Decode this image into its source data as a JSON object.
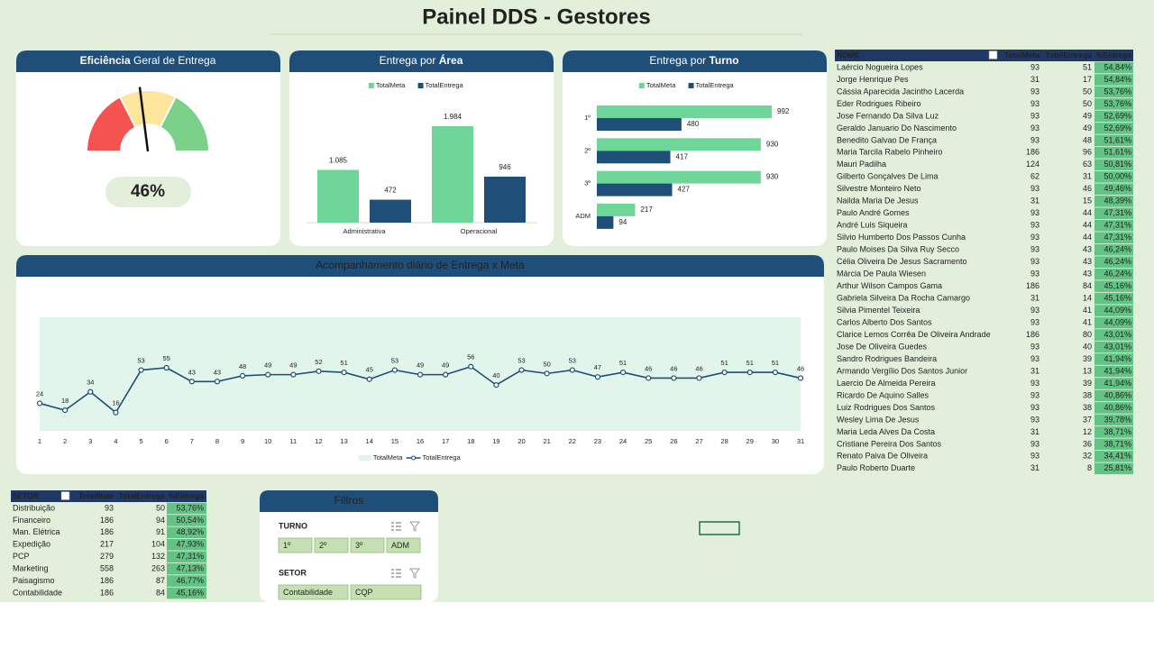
{
  "title": "Painel DDS - Gestores",
  "chart_data": [
    {
      "type": "gauge",
      "title_parts": [
        {
          "text": "Eficiência",
          "bold": true
        },
        {
          "text": "Geral de Entrega",
          "bold": false
        }
      ],
      "values": [
        46
      ],
      "value_labels": [
        "46%"
      ],
      "ylim": [
        0,
        100
      ],
      "bands": [
        {
          "from": 0,
          "to": 35,
          "color": "#f4534f"
        },
        {
          "from": 35,
          "to": 65,
          "color": "#fde59b"
        },
        {
          "from": 65,
          "to": 100,
          "color": "#7bd08a"
        }
      ]
    },
    {
      "type": "bar",
      "title_parts": [
        {
          "text": "Entrega por",
          "bold": false
        },
        {
          "text": "Área",
          "bold": true
        }
      ],
      "categories": [
        "Administrativa",
        "Operacional"
      ],
      "series": [
        {
          "name": "TotalMeta",
          "color": "#6fd699",
          "values": [
            1085,
            1984
          ],
          "value_labels": [
            "1.085",
            "1.984"
          ]
        },
        {
          "name": "TotalEntrega",
          "color": "#1f4e79",
          "values": [
            472,
            946
          ]
        }
      ]
    },
    {
      "type": "hbar",
      "title_parts": [
        {
          "text": "Entrega por",
          "bold": false
        },
        {
          "text": "Turno",
          "bold": true
        }
      ],
      "categories": [
        "1º",
        "2º",
        "3º",
        "ADM"
      ],
      "series": [
        {
          "name": "TotalMeta",
          "color": "#6fd699",
          "values": [
            992,
            930,
            930,
            217
          ]
        },
        {
          "name": "TotalEntrega",
          "color": "#1f4e79",
          "values": [
            480,
            417,
            427,
            94
          ]
        }
      ]
    },
    {
      "type": "line",
      "title": "Acompanhamento diário de Entrega x Meta",
      "x": [
        1,
        2,
        3,
        4,
        5,
        6,
        7,
        8,
        9,
        10,
        11,
        12,
        13,
        14,
        15,
        16,
        17,
        18,
        19,
        20,
        21,
        22,
        23,
        24,
        25,
        26,
        27,
        28,
        29,
        30,
        31
      ],
      "series": [
        {
          "name": "TotalMeta",
          "type": "area",
          "color": "#e2f5ea",
          "values": [
            99,
            99,
            99,
            99,
            99,
            99,
            99,
            99,
            99,
            99,
            99,
            99,
            99,
            99,
            99,
            99,
            99,
            99,
            99,
            99,
            99,
            99,
            99,
            99,
            99,
            99,
            99,
            99,
            99,
            99,
            99
          ]
        },
        {
          "name": "TotalEntrega",
          "type": "line",
          "color": "#1f4e79",
          "values": [
            24,
            18,
            34,
            16,
            53,
            55,
            43,
            43,
            48,
            49,
            49,
            52,
            51,
            45,
            53,
            49,
            49,
            56,
            40,
            53,
            50,
            53,
            47,
            51,
            46,
            46,
            46,
            51,
            51,
            51,
            46
          ]
        }
      ]
    }
  ],
  "people_table": {
    "header": [
      "NOME",
      "TotalMeta",
      "TotalEntrega",
      "%Entrega"
    ],
    "rows": [
      [
        "Laércio Nogueira Lopes",
        "93",
        "51",
        "54,84%"
      ],
      [
        "Jorge Henrique Pes",
        "31",
        "17",
        "54,84%"
      ],
      [
        "Cássia Aparecida Jacintho Lacerda",
        "93",
        "50",
        "53,76%"
      ],
      [
        "Eder Rodrigues Ribeiro",
        "93",
        "50",
        "53,76%"
      ],
      [
        "Jose Fernando Da Silva Luz",
        "93",
        "49",
        "52,69%"
      ],
      [
        "Geraldo Januario Do Nascimento",
        "93",
        "49",
        "52,69%"
      ],
      [
        "Benedito Galvao De França",
        "93",
        "48",
        "51,61%"
      ],
      [
        "Maria Tarcila Rabelo Pinheiro",
        "186",
        "96",
        "51,61%"
      ],
      [
        "Mauri Padilha",
        "124",
        "63",
        "50,81%"
      ],
      [
        "Gilberto Gonçalves De Lima",
        "62",
        "31",
        "50,00%"
      ],
      [
        "Silvestre Monteiro Neto",
        "93",
        "46",
        "49,46%"
      ],
      [
        "Nailda Maria De Jesus",
        "31",
        "15",
        "48,39%"
      ],
      [
        "Paulo André Gomes",
        "93",
        "44",
        "47,31%"
      ],
      [
        "André Luis Siqueira",
        "93",
        "44",
        "47,31%"
      ],
      [
        "Silvio Humberto Dos Passos Cunha",
        "93",
        "44",
        "47,31%"
      ],
      [
        "Paulo Moises Da Silva Ruy Secco",
        "93",
        "43",
        "46,24%"
      ],
      [
        "Célia Oliveira De Jesus Sacramento",
        "93",
        "43",
        "46,24%"
      ],
      [
        "Márcia De Paula Wiesen",
        "93",
        "43",
        "46,24%"
      ],
      [
        "Arthur Wilson Campos Gama",
        "186",
        "84",
        "45,16%"
      ],
      [
        "Gabriela Silveira Da Rocha Camargo",
        "31",
        "14",
        "45,16%"
      ],
      [
        "Silvia Pimentel Teixeira",
        "93",
        "41",
        "44,09%"
      ],
      [
        "Carlos Alberto Dos Santos",
        "93",
        "41",
        "44,09%"
      ],
      [
        "Clarice Lemos Corrêa De Oliveira Andrade",
        "186",
        "80",
        "43,01%"
      ],
      [
        "Jose De Oliveira Guedes",
        "93",
        "40",
        "43,01%"
      ],
      [
        "Sandro Rodrigues Bandeira",
        "93",
        "39",
        "41,94%"
      ],
      [
        "Armando Vergílio Dos Santos Junior",
        "31",
        "13",
        "41,94%"
      ],
      [
        "Laercio De Almeida Pereira",
        "93",
        "39",
        "41,94%"
      ],
      [
        "Ricardo De Aquino Salles",
        "93",
        "38",
        "40,86%"
      ],
      [
        "Luiz Rodrigues Dos Santos",
        "93",
        "38",
        "40,86%"
      ],
      [
        "Wesley Lima De Jesus",
        "93",
        "37",
        "39,78%"
      ],
      [
        "Maria Leda Alves Da Costa",
        "31",
        "12",
        "38,71%"
      ],
      [
        "Cristiane Pereira Dos Santos",
        "93",
        "36",
        "38,71%"
      ],
      [
        "Renato Paiva De Oliveira",
        "93",
        "32",
        "34,41%"
      ],
      [
        "Paulo Roberto Duarte",
        "31",
        "8",
        "25,81%"
      ]
    ]
  },
  "sector_table": {
    "header": [
      "SETOR",
      "TotalMeta",
      "TotalEntrega",
      "%Entrega"
    ],
    "rows": [
      [
        "Distribuição",
        "93",
        "50",
        "53,76%"
      ],
      [
        "Financeiro",
        "186",
        "94",
        "50,54%"
      ],
      [
        "Man. Elétrica",
        "186",
        "91",
        "48,92%"
      ],
      [
        "Expedição",
        "217",
        "104",
        "47,93%"
      ],
      [
        "PCP",
        "279",
        "132",
        "47,31%"
      ],
      [
        "Marketing",
        "558",
        "263",
        "47,13%"
      ],
      [
        "Paisagismo",
        "186",
        "87",
        "46,77%"
      ],
      [
        "Contabilidade",
        "186",
        "84",
        "45,16%"
      ]
    ]
  },
  "filters": {
    "title": "Filtros",
    "groups": [
      {
        "label": "TURNO",
        "options": [
          "1º",
          "2º",
          "3º",
          "ADM"
        ]
      },
      {
        "label": "SETOR",
        "options": [
          "Contabilidade",
          "CQP"
        ]
      }
    ]
  }
}
